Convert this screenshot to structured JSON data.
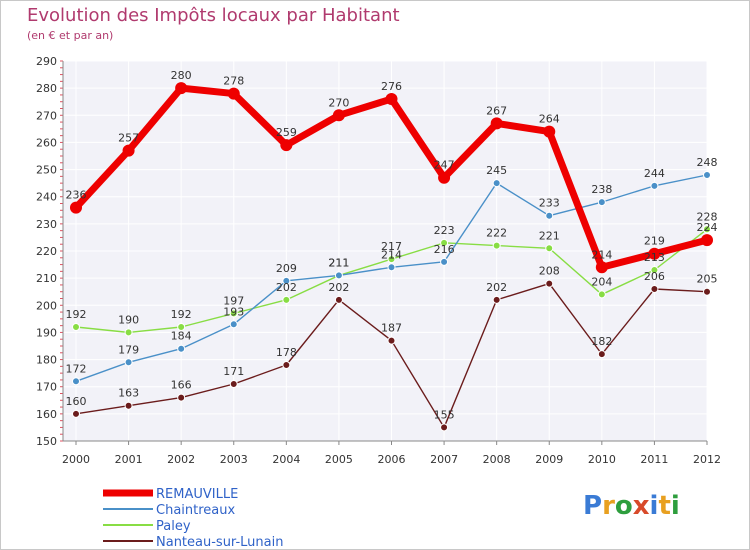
{
  "header": {
    "title": "Evolution des Impôts locaux par Habitant",
    "subtitle": "(en € et par an)"
  },
  "logo": "Proxiti",
  "chart_data": {
    "type": "line",
    "title": "Evolution des Impôts locaux par Habitant",
    "subtitle": "(en € et par an)",
    "x": [
      "2000",
      "2001",
      "2002",
      "2003",
      "2004",
      "2005",
      "2006",
      "2007",
      "2008",
      "2009",
      "2010",
      "2011",
      "2012"
    ],
    "ylim": [
      150,
      290
    ],
    "yticks": [
      150,
      160,
      170,
      180,
      190,
      200,
      210,
      220,
      230,
      240,
      250,
      260,
      270,
      280,
      290
    ],
    "grid": true,
    "legend_position": "bottom-left",
    "series": [
      {
        "name": "REMAUVILLE",
        "color": "#ee0000",
        "values": [
          236,
          257,
          280,
          278,
          259,
          270,
          276,
          247,
          267,
          264,
          214,
          219,
          224
        ]
      },
      {
        "name": "Chaintreaux",
        "color": "#4a90c8",
        "values": [
          172,
          179,
          184,
          193,
          209,
          211,
          214,
          216,
          245,
          233,
          238,
          244,
          248
        ]
      },
      {
        "name": "Paley",
        "color": "#88dd44",
        "values": [
          192,
          190,
          192,
          197,
          202,
          211,
          217,
          223,
          222,
          221,
          204,
          213,
          228
        ]
      },
      {
        "name": "Nanteau-sur-Lunain",
        "color": "#6b1c1c",
        "values": [
          160,
          163,
          166,
          171,
          178,
          202,
          187,
          155,
          202,
          208,
          182,
          206,
          205
        ]
      }
    ]
  }
}
